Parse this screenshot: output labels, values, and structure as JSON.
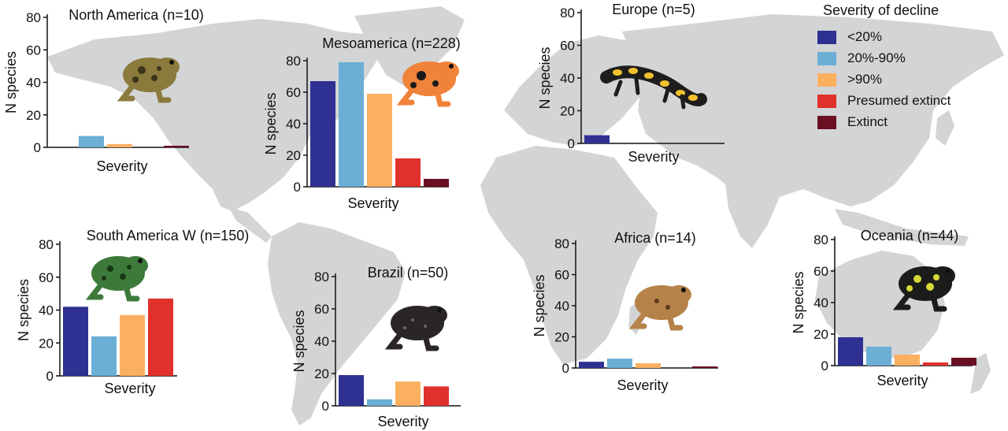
{
  "colors": {
    "map": "#d3d4d6",
    "severity": [
      "#2e3192",
      "#6baed6",
      "#fbb060",
      "#e0312c",
      "#6b0f24"
    ]
  },
  "legend": {
    "title": "Severity of decline",
    "items": [
      "<20%",
      "20%-90%",
      ">90%",
      "Presumed extinct",
      "Extinct"
    ]
  },
  "chart_data": [
    {
      "type": "bar",
      "title": "North America (n=10)",
      "categories": [
        "<20%",
        "20%-90%",
        ">90%",
        "Presumed extinct",
        "Extinct"
      ],
      "values": [
        0,
        7,
        2,
        0,
        1
      ],
      "xlabel": "Severity",
      "ylabel": "N species",
      "yticks": [
        0,
        20,
        40,
        60,
        80
      ],
      "ylim": [
        0,
        80
      ],
      "image": "toad-icon"
    },
    {
      "type": "bar",
      "title": "Mesoamerica (n=228)",
      "categories": [
        "<20%",
        "20%-90%",
        ">90%",
        "Presumed extinct",
        "Extinct"
      ],
      "values": [
        67,
        79,
        59,
        18,
        5
      ],
      "xlabel": "Severity",
      "ylabel": "N species",
      "yticks": [
        0,
        20,
        40,
        60,
        80
      ],
      "ylim": [
        0,
        80
      ],
      "image": "harlequin-frog-icon"
    },
    {
      "type": "bar",
      "title": "Europe (n=5)",
      "categories": [
        "<20%",
        "20%-90%",
        ">90%",
        "Presumed extinct",
        "Extinct"
      ],
      "values": [
        5,
        0,
        0,
        0,
        0
      ],
      "xlabel": "Severity",
      "ylabel": "N species",
      "yticks": [
        0,
        20,
        40,
        60,
        80
      ],
      "ylim": [
        0,
        80
      ],
      "image": "fire-salamander-icon"
    },
    {
      "type": "bar",
      "title": "South America W (n=150)",
      "categories": [
        "<20%",
        "20%-90%",
        ">90%",
        "Presumed extinct",
        "Extinct"
      ],
      "values": [
        42,
        24,
        37,
        47,
        0
      ],
      "xlabel": "Severity",
      "ylabel": "N species",
      "yticks": [
        0,
        20,
        40,
        60,
        80
      ],
      "ylim": [
        0,
        80
      ],
      "image": "green-frog-icon"
    },
    {
      "type": "bar",
      "title": "Brazil (n=50)",
      "categories": [
        "<20%",
        "20%-90%",
        ">90%",
        "Presumed extinct",
        "Extinct"
      ],
      "values": [
        19,
        4,
        15,
        12,
        0
      ],
      "xlabel": "Severity",
      "ylabel": "N species",
      "yticks": [
        0,
        20,
        40,
        60,
        80
      ],
      "ylim": [
        0,
        80
      ],
      "image": "black-frog-icon"
    },
    {
      "type": "bar",
      "title": "Africa (n=14)",
      "categories": [
        "<20%",
        "20%-90%",
        ">90%",
        "Presumed extinct",
        "Extinct"
      ],
      "values": [
        4,
        6,
        3,
        0,
        1
      ],
      "xlabel": "Severity",
      "ylabel": "N species",
      "yticks": [
        0,
        20,
        40,
        60,
        80
      ],
      "ylim": [
        0,
        80
      ],
      "image": "brown-frog-icon"
    },
    {
      "type": "bar",
      "title": "Oceania (n=44)",
      "categories": [
        "<20%",
        "20%-90%",
        ">90%",
        "Presumed extinct",
        "Extinct"
      ],
      "values": [
        18,
        12,
        7,
        2,
        5
      ],
      "xlabel": "Severity",
      "ylabel": "N species",
      "yticks": [
        0,
        20,
        40,
        60,
        80
      ],
      "ylim": [
        0,
        80
      ],
      "image": "corroboree-frog-icon"
    }
  ]
}
